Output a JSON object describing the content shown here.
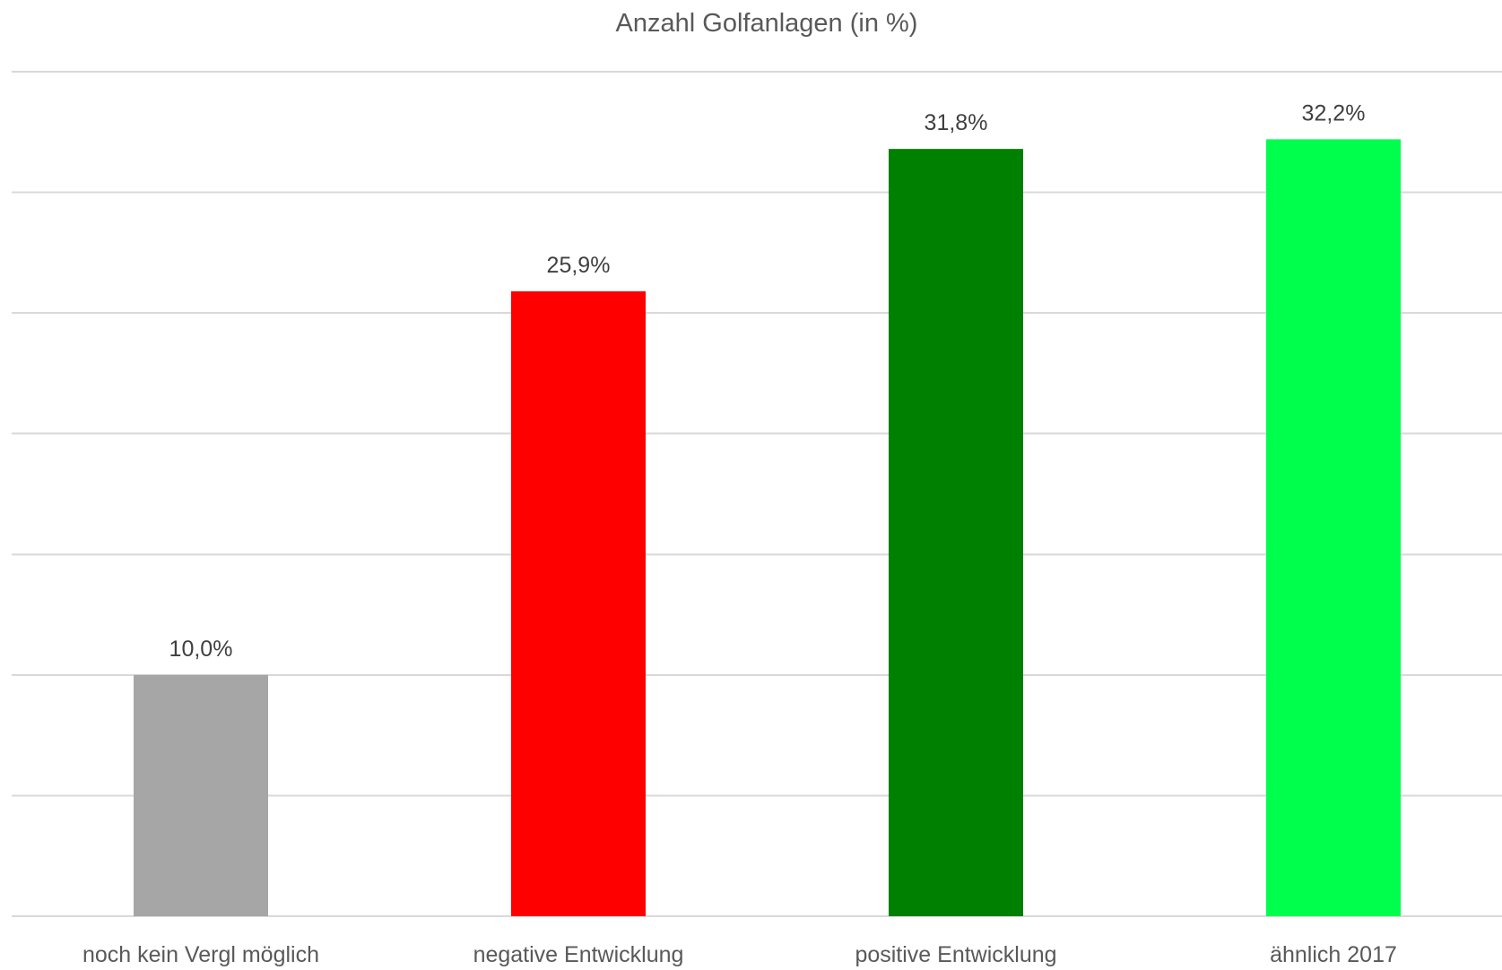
{
  "chart_data": {
    "type": "bar",
    "title": "Anzahl Golfanlagen (in %)",
    "xlabel": "",
    "ylabel": "",
    "categories": [
      "noch kein Vergl möglich",
      "negative Entwicklung",
      "positive Entwicklung",
      "ähnlich 2017"
    ],
    "values": [
      10.0,
      25.9,
      31.8,
      32.2
    ],
    "data_labels": [
      "10,0%",
      "25,9%",
      "31,8%",
      "32,2%"
    ],
    "colors": [
      "#A6A6A6",
      "#FF0000",
      "#008000",
      "#00FF4C"
    ],
    "ylim": [
      0,
      35
    ],
    "grid": true,
    "grid_step": 5,
    "legend": "none"
  }
}
